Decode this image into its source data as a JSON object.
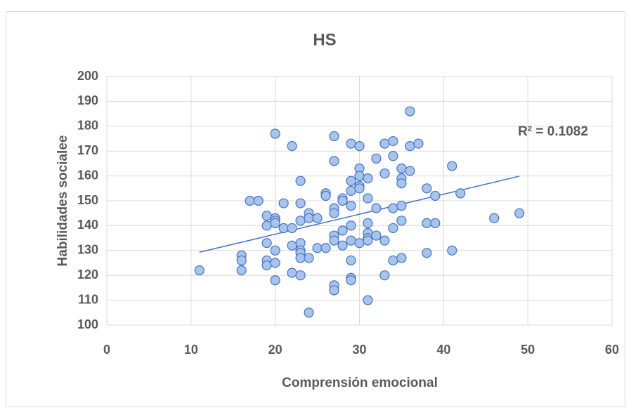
{
  "chart_data": {
    "type": "scatter",
    "title": "HS",
    "x_label": "Comprensión emocional",
    "y_label": "Habilidades socialee",
    "annotation": "R² = 0.1082",
    "color": "#4472c4",
    "fill": "#a9c4eb",
    "grid": true,
    "xlim": [
      0,
      60
    ],
    "xticks": [
      0,
      10,
      20,
      30,
      40,
      50,
      60
    ],
    "ylim": [
      100,
      200
    ],
    "yticks": [
      100,
      110,
      120,
      130,
      140,
      150,
      160,
      170,
      180,
      190,
      200
    ],
    "x": [
      11,
      16,
      16,
      16,
      17,
      18,
      19,
      19,
      19,
      19,
      19,
      20,
      20,
      20,
      20,
      20,
      20,
      20,
      21,
      21,
      22,
      22,
      22,
      22,
      23,
      23,
      23,
      23,
      23,
      23,
      23,
      23,
      24,
      24,
      24,
      24,
      25,
      25,
      26,
      26,
      26,
      27,
      27,
      27,
      27,
      27,
      27,
      27,
      27,
      28,
      28,
      28,
      28,
      29,
      29,
      29,
      29,
      29,
      29,
      29,
      29,
      29,
      30,
      30,
      30,
      30,
      30,
      30,
      31,
      31,
      31,
      31,
      31,
      31,
      31,
      32,
      32,
      32,
      33,
      33,
      33,
      33,
      34,
      34,
      34,
      34,
      34,
      35,
      35,
      35,
      35,
      35,
      35,
      36,
      36,
      36,
      37,
      38,
      38,
      38,
      39,
      39,
      41,
      41,
      42,
      46,
      49
    ],
    "values": [
      122,
      128,
      126,
      122,
      150,
      150,
      144,
      140,
      133,
      126,
      124,
      177,
      143,
      142,
      141,
      130,
      125,
      118,
      149,
      139,
      172,
      139,
      132,
      121,
      158,
      149,
      142,
      133,
      130,
      129,
      127,
      120,
      145,
      143,
      127,
      105,
      143,
      131,
      153,
      152,
      131,
      176,
      166,
      147,
      145,
      136,
      134,
      116,
      114,
      151,
      150,
      138,
      132,
      173,
      158,
      154,
      148,
      140,
      134,
      126,
      119,
      118,
      172,
      163,
      160,
      156,
      155,
      133,
      159,
      151,
      141,
      137,
      135,
      134,
      110,
      167,
      147,
      136,
      173,
      161,
      134,
      120,
      174,
      168,
      147,
      139,
      126,
      163,
      159,
      157,
      148,
      142,
      127,
      186,
      172,
      162,
      173,
      155,
      141,
      129,
      152,
      141,
      164,
      130,
      153,
      143,
      145
    ],
    "trendline": {
      "x": [
        11,
        49
      ],
      "y": [
        129.3,
        159.9
      ]
    }
  }
}
